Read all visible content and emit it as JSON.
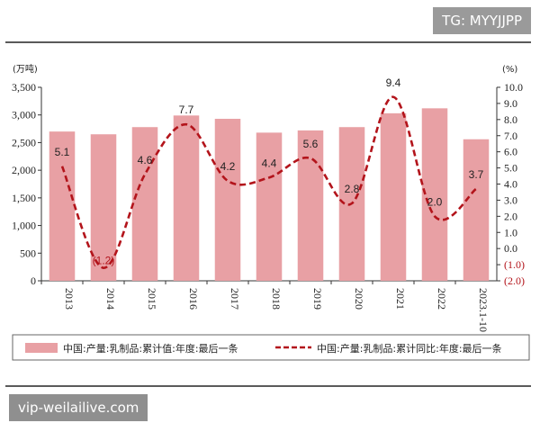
{
  "watermark_top": "TG: MYYJJPP",
  "watermark_bottom": "vip-weilailive.com",
  "chart_data": {
    "type": "bar",
    "title": "",
    "categories": [
      "2013",
      "2014",
      "2015",
      "2016",
      "2017",
      "2018",
      "2019",
      "2020",
      "2021",
      "2022",
      "2023.1-10"
    ],
    "series": [
      {
        "name": "中国:产量:乳制品:累计值:年度:最后一条",
        "type": "bar",
        "axis": "left",
        "values": [
          2700,
          2650,
          2780,
          2990,
          2930,
          2680,
          2720,
          2780,
          3030,
          3120,
          2560
        ],
        "color": "#e8a0a4"
      },
      {
        "name": "中国:产量:乳制品:累计同比:年度:最后一条",
        "type": "line",
        "axis": "right",
        "values": [
          5.1,
          -1.2,
          4.6,
          7.7,
          4.2,
          4.4,
          5.6,
          2.8,
          9.4,
          2.0,
          3.7
        ],
        "labels": [
          "5.1",
          "(1.2)",
          "4.6",
          "7.7",
          "4.2",
          "4.4",
          "5.6",
          "2.8",
          "9.4",
          "2.0",
          "3.7"
        ],
        "color": "#b3141b",
        "style": "dashed"
      }
    ],
    "y_left": {
      "unit": "(万吨)",
      "ylim": [
        0,
        3500
      ],
      "ticks": [
        "0",
        "500",
        "1,000",
        "1,500",
        "2,000",
        "2,500",
        "3,000",
        "3,500"
      ]
    },
    "y_right": {
      "unit": "(%)",
      "ylim": [
        -2.0,
        10.0
      ],
      "ticks": [
        "(2.0)",
        "(1.0)",
        "0.0",
        "1.0",
        "2.0",
        "3.0",
        "4.0",
        "5.0",
        "6.0",
        "7.0",
        "8.0",
        "9.0",
        "10.0"
      ]
    },
    "grid": false,
    "legend": "bottom"
  }
}
